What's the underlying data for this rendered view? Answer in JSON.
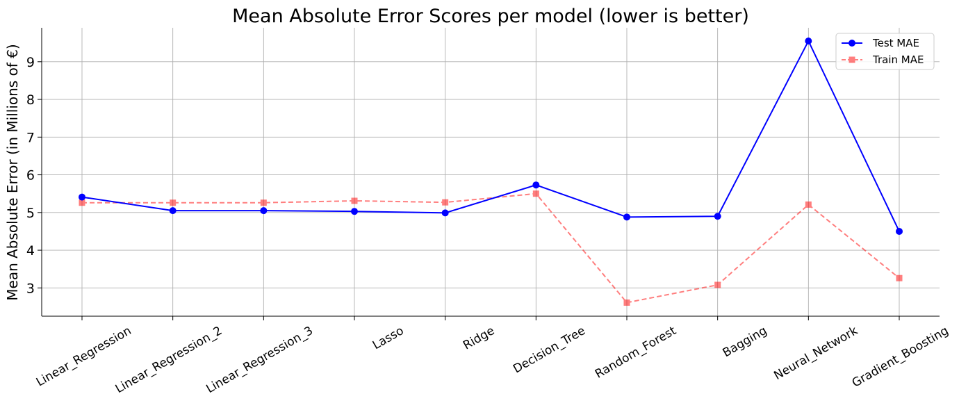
{
  "chart_data": {
    "type": "line",
    "title": "Mean Absolute Error Scores per model (lower is better)",
    "xlabel": "",
    "ylabel": "Mean Absolute Error (in Millions of €)",
    "categories": [
      "Linear_Regression",
      "Linear_Regression_2",
      "Linear_Regression_3",
      "Lasso",
      "Ridge",
      "Decision_Tree",
      "Random_Forest",
      "Bagging",
      "Neural_Network",
      "Gradient_Boosting"
    ],
    "series": [
      {
        "name": "Test MAE",
        "values": [
          5.41,
          5.05,
          5.05,
          5.03,
          4.99,
          5.73,
          4.88,
          4.9,
          9.55,
          4.5
        ],
        "color": "#0000ff",
        "line_style": "solid",
        "marker": "circle"
      },
      {
        "name": "Train MAE",
        "values": [
          5.26,
          5.26,
          5.26,
          5.31,
          5.27,
          5.5,
          2.61,
          3.08,
          5.21,
          3.26
        ],
        "color": "#ff0000",
        "line_style": "dashed",
        "marker": "square",
        "opacity": 0.5
      }
    ],
    "ylim": [
      2.25,
      9.9
    ],
    "yticks": [
      3,
      4,
      5,
      6,
      7,
      8,
      9
    ],
    "grid": true,
    "legend_position": "top-right"
  }
}
